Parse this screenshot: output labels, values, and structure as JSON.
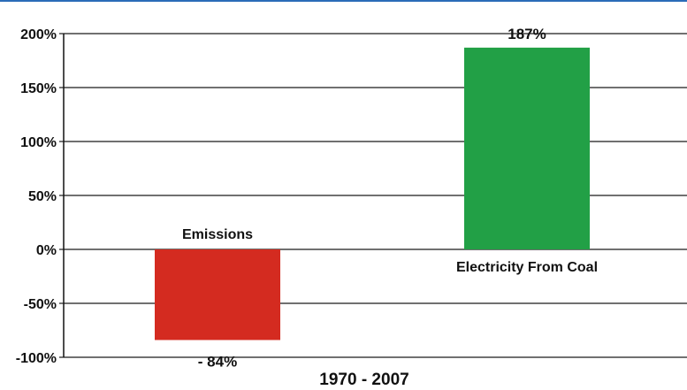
{
  "chart_data": {
    "type": "bar",
    "categories": [
      "Emissions",
      "Electricity From Coal"
    ],
    "values": [
      -84,
      187
    ],
    "data_labels": [
      "- 84%",
      "187%"
    ],
    "colors": [
      "#d42b20",
      "#22a046"
    ],
    "ylim": [
      -100,
      200
    ],
    "yticks": [
      200,
      150,
      100,
      50,
      0,
      -50,
      -100
    ],
    "ytick_labels": [
      "200%",
      "150%",
      "100%",
      "50%",
      "0%",
      "-50%",
      "-100%"
    ],
    "xlabel": "1970 - 2007",
    "grid": true,
    "legend": "none"
  }
}
